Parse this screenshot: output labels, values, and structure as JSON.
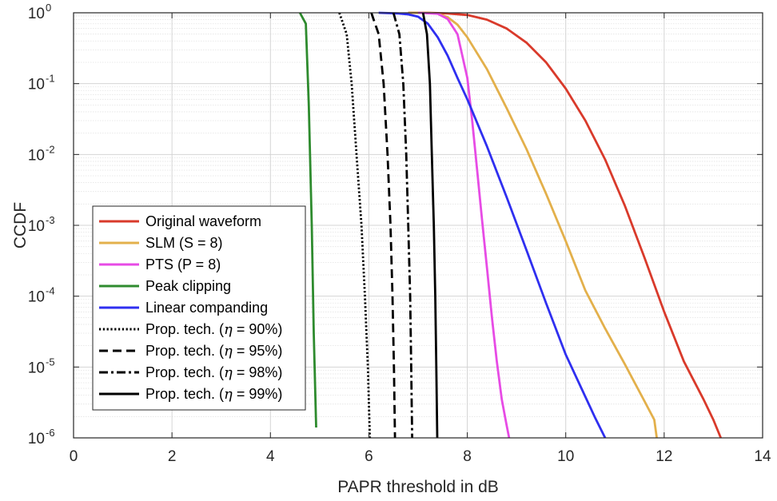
{
  "chart_data": {
    "type": "line",
    "xlabel": "PAPR threshold in dB",
    "ylabel": "CCDF",
    "xlim": [
      0,
      14
    ],
    "ylim": [
      1e-06,
      1
    ],
    "yscale": "log",
    "xticks": [
      "0",
      "2",
      "4",
      "6",
      "8",
      "10",
      "12",
      "14"
    ],
    "yticks": [
      {
        "base": "10",
        "exp": "0"
      },
      {
        "base": "10",
        "exp": "-1"
      },
      {
        "base": "10",
        "exp": "-2"
      },
      {
        "base": "10",
        "exp": "-3"
      },
      {
        "base": "10",
        "exp": "-4"
      },
      {
        "base": "10",
        "exp": "-5"
      },
      {
        "base": "10",
        "exp": "-6"
      }
    ],
    "grid": true,
    "legend_position": "bottom-left",
    "series": [
      {
        "name": "Original waveform",
        "color": "#d93a2b",
        "style": "solid",
        "x": [
          6.8,
          7.2,
          7.6,
          8.0,
          8.4,
          8.8,
          9.2,
          9.6,
          10.0,
          10.4,
          10.8,
          11.2,
          11.6,
          12.0,
          12.4,
          12.8,
          13.0,
          13.15
        ],
        "y": [
          1,
          1,
          0.98,
          0.93,
          0.8,
          0.6,
          0.38,
          0.2,
          0.085,
          0.03,
          0.0085,
          0.0019,
          0.00035,
          6e-05,
          1.2e-05,
          3.5e-06,
          1.8e-06,
          1e-06
        ]
      },
      {
        "name": "SLM (S = 8)",
        "color": "#e3b04b",
        "style": "solid",
        "x": [
          6.8,
          7.2,
          7.4,
          7.6,
          7.8,
          8.0,
          8.4,
          8.8,
          9.2,
          9.6,
          10.0,
          10.4,
          10.8,
          11.2,
          11.6,
          11.8,
          11.85
        ],
        "y": [
          1,
          1,
          0.97,
          0.87,
          0.68,
          0.45,
          0.16,
          0.045,
          0.012,
          0.0028,
          0.0006,
          0.00012,
          3.5e-05,
          1.1e-05,
          3.3e-06,
          1.8e-06,
          1e-06
        ]
      },
      {
        "name": "PTS (P = 8)",
        "color": "#e74be5",
        "style": "solid",
        "x": [
          7.0,
          7.4,
          7.6,
          7.8,
          8.0,
          8.1,
          8.2,
          8.3,
          8.4,
          8.5,
          8.6,
          8.7,
          8.8,
          8.85
        ],
        "y": [
          1,
          0.97,
          0.82,
          0.5,
          0.12,
          0.03,
          0.006,
          0.0012,
          0.00025,
          5e-05,
          1.2e-05,
          3.5e-06,
          1.5e-06,
          1e-06
        ]
      },
      {
        "name": "Peak clipping",
        "color": "#2e8b2e",
        "style": "solid",
        "x": [
          4.6,
          4.72,
          4.78,
          4.84,
          4.88,
          4.93
        ],
        "y": [
          1,
          0.7,
          0.05,
          0.001,
          3e-05,
          1.4e-06
        ]
      },
      {
        "name": "Linear companding",
        "color": "#2f2ff0",
        "style": "solid",
        "x": [
          6.2,
          6.6,
          6.8,
          7.0,
          7.2,
          7.4,
          7.6,
          7.8,
          8.0,
          8.4,
          8.8,
          9.2,
          9.6,
          10.0,
          10.4,
          10.6,
          10.8
        ],
        "y": [
          1,
          0.98,
          0.95,
          0.88,
          0.7,
          0.45,
          0.25,
          0.12,
          0.06,
          0.013,
          0.0025,
          0.00045,
          8e-05,
          1.5e-05,
          3.8e-06,
          1.9e-06,
          1e-06
        ]
      },
      {
        "name": "Prop. tech. (η = 90%)",
        "color": "#000000",
        "style": "dotted",
        "x": [
          5.4,
          5.55,
          5.65,
          5.75,
          5.85,
          5.92,
          5.98,
          6.02
        ],
        "y": [
          1,
          0.5,
          0.1,
          0.01,
          0.001,
          0.0001,
          1e-05,
          1e-06
        ]
      },
      {
        "name": "Prop. tech. (η = 95%)",
        "color": "#000000",
        "style": "dashed",
        "x": [
          6.05,
          6.2,
          6.3,
          6.38,
          6.44,
          6.48,
          6.51,
          6.53
        ],
        "y": [
          1,
          0.5,
          0.1,
          0.01,
          0.001,
          0.0001,
          1e-05,
          1e-06
        ]
      },
      {
        "name": "Prop. tech. (η = 98%)",
        "color": "#000000",
        "style": "dashdot",
        "x": [
          6.5,
          6.62,
          6.7,
          6.76,
          6.8,
          6.84,
          6.86,
          6.88
        ],
        "y": [
          1,
          0.5,
          0.1,
          0.01,
          0.001,
          0.0001,
          1e-05,
          1e-06
        ]
      },
      {
        "name": "Prop. tech. (η = 99%)",
        "color": "#000000",
        "style": "solid",
        "x": [
          7.1,
          7.18,
          7.24,
          7.28,
          7.32,
          7.35,
          7.37,
          7.39
        ],
        "y": [
          1,
          0.5,
          0.1,
          0.01,
          0.001,
          0.0001,
          1e-05,
          1e-06
        ]
      }
    ]
  }
}
